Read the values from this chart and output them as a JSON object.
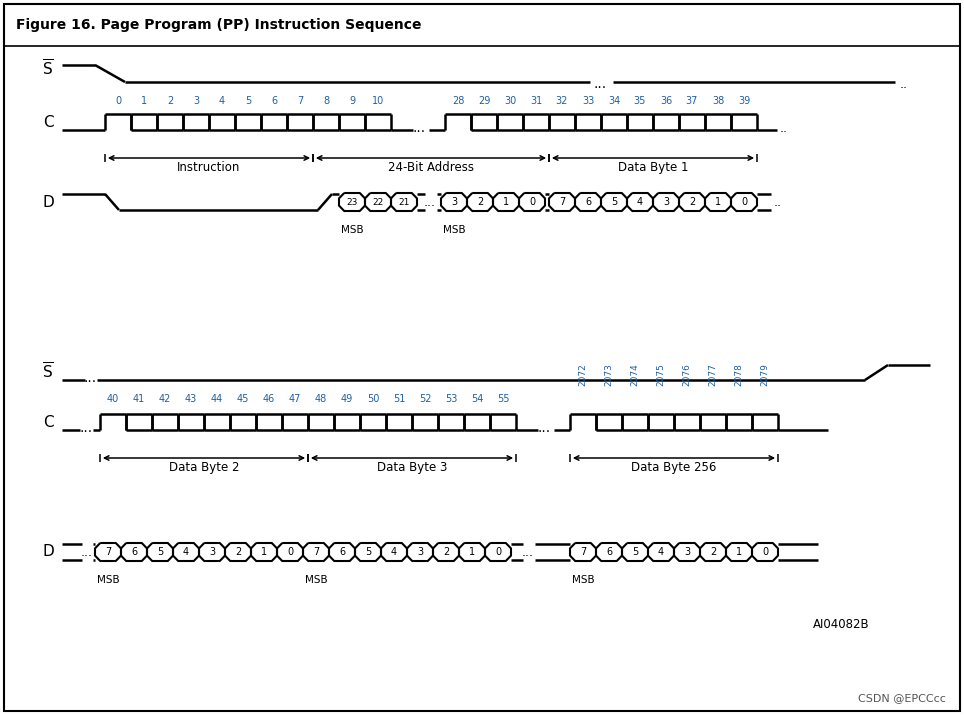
{
  "title": "Figure 16. Page Program (PP) Instruction Sequence",
  "watermark": "CSDN @EPCCcc",
  "ref_code": "AI04082B",
  "bg_color": "#ffffff",
  "border_color": "#000000",
  "signal_color": "#000000",
  "blue_color": "#2060a0",
  "figsize": [
    9.64,
    7.15
  ],
  "dpi": 100,
  "clk_labels_top1": [
    "0",
    "1",
    "2",
    "3",
    "4",
    "5",
    "6",
    "7",
    "8",
    "9",
    "10"
  ],
  "clk_labels_top2": [
    "28",
    "29",
    "30",
    "31",
    "32",
    "33",
    "34",
    "35",
    "36",
    "37",
    "38",
    "39"
  ],
  "clk_labels_bot1": [
    "40",
    "41",
    "42",
    "43",
    "44",
    "45",
    "46",
    "47",
    "48",
    "49",
    "50",
    "51",
    "52",
    "53",
    "54",
    "55"
  ],
  "clk_labels_bot2": [
    "2072",
    "2073",
    "2074",
    "2075",
    "2076",
    "2077",
    "2078",
    "2079"
  ],
  "addr_cells_1": [
    "23",
    "22",
    "21"
  ],
  "addr_cells_2": [
    "3",
    "2",
    "1",
    "0"
  ],
  "data_cells_1": [
    "7",
    "6",
    "5",
    "4",
    "3",
    "2",
    "1",
    "0"
  ],
  "data_cells_b2": [
    "7",
    "6",
    "5",
    "4",
    "3",
    "2",
    "1",
    "0"
  ],
  "data_cells_b3": [
    "7",
    "6",
    "5",
    "4",
    "3",
    "2",
    "1",
    "0"
  ],
  "data_cells_b256": [
    "7",
    "6",
    "5",
    "4",
    "3",
    "2",
    "1",
    "0"
  ]
}
